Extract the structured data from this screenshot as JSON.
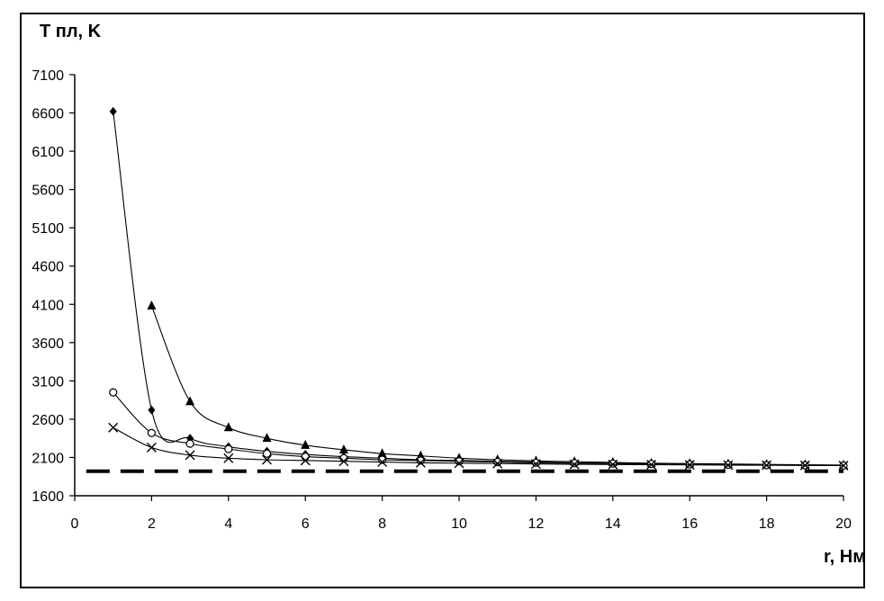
{
  "chart_data": {
    "type": "line",
    "title": "",
    "ylabel": "T пл, K",
    "xlabel": "r, Нм",
    "xlim": [
      0,
      20
    ],
    "ylim": [
      1600,
      7100
    ],
    "xticks": [
      0,
      2,
      4,
      6,
      8,
      10,
      12,
      14,
      16,
      18,
      20
    ],
    "yticks": [
      1600,
      2100,
      2600,
      3100,
      3600,
      4100,
      4600,
      5100,
      5600,
      6100,
      6600,
      7100
    ],
    "grid": false,
    "legend": "none",
    "series": [
      {
        "marker": "diamond",
        "x": [
          1,
          2,
          3,
          4,
          5,
          6,
          7,
          8,
          9,
          10,
          11,
          12,
          13,
          14,
          15,
          16,
          17,
          18,
          19,
          20
        ],
        "values": [
          6620,
          2720,
          2350,
          2240,
          2180,
          2140,
          2110,
          2090,
          2070,
          2060,
          2050,
          2040,
          2030,
          2025,
          2020,
          2015,
          2010,
          2005,
          2000,
          1995
        ]
      },
      {
        "marker": "triangle",
        "x": [
          2,
          3,
          4,
          5,
          6,
          7,
          8,
          9,
          10,
          11,
          12,
          13,
          14,
          15,
          16,
          17,
          18,
          19,
          20
        ],
        "values": [
          4080,
          2830,
          2490,
          2350,
          2260,
          2200,
          2150,
          2120,
          2090,
          2070,
          2055,
          2045,
          2035,
          2025,
          2020,
          2015,
          2010,
          2005,
          2000
        ]
      },
      {
        "marker": "circle",
        "x": [
          1,
          2,
          3,
          4,
          5,
          6,
          7,
          8,
          9,
          10,
          11,
          12,
          13,
          14,
          15,
          16,
          17,
          18,
          19,
          20
        ],
        "values": [
          2950,
          2420,
          2280,
          2210,
          2150,
          2110,
          2090,
          2070,
          2060,
          2050,
          2040,
          2030,
          2025,
          2020,
          2015,
          2010,
          2005,
          2000,
          1998,
          1995
        ]
      },
      {
        "marker": "x",
        "x": [
          1,
          2,
          3,
          4,
          5,
          6,
          7,
          8,
          9,
          10,
          11,
          12,
          13,
          14,
          15,
          16,
          17,
          18,
          19,
          20
        ],
        "values": [
          2490,
          2230,
          2130,
          2090,
          2070,
          2060,
          2050,
          2040,
          2030,
          2025,
          2020,
          2015,
          2010,
          2008,
          2005,
          2003,
          2000,
          1998,
          1996,
          1994
        ]
      },
      {
        "marker": "none",
        "line": "dashed",
        "x": [
          0.3,
          20
        ],
        "values": [
          1920,
          1920
        ]
      }
    ]
  }
}
